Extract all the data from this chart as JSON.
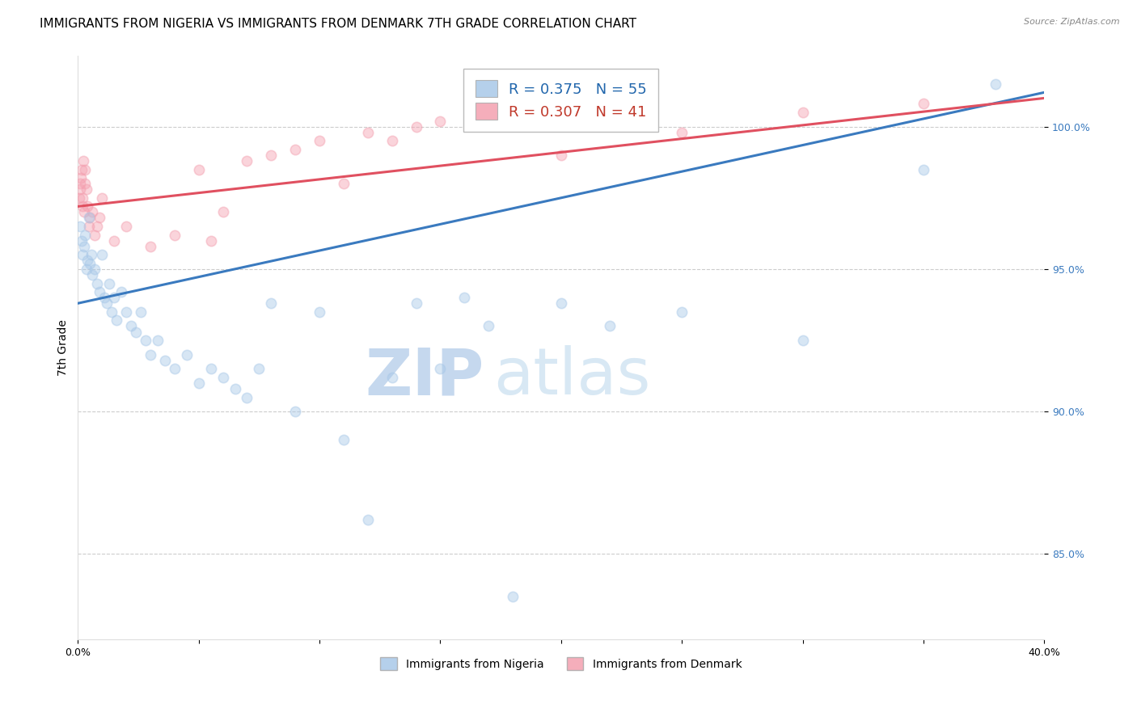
{
  "title": "IMMIGRANTS FROM NIGERIA VS IMMIGRANTS FROM DENMARK 7TH GRADE CORRELATION CHART",
  "source": "Source: ZipAtlas.com",
  "ylabel": "7th Grade",
  "xlim": [
    0.0,
    40.0
  ],
  "ylim": [
    82.0,
    102.5
  ],
  "yticks": [
    85.0,
    90.0,
    95.0,
    100.0
  ],
  "ytick_labels": [
    "85.0%",
    "90.0%",
    "95.0%",
    "100.0%"
  ],
  "xticks": [
    0.0,
    5.0,
    10.0,
    15.0,
    20.0,
    25.0,
    30.0,
    35.0,
    40.0
  ],
  "nigeria_color": "#a8c8e8",
  "denmark_color": "#f4a0b0",
  "nigeria_line_color": "#3a7abf",
  "denmark_line_color": "#e05060",
  "legend_nigeria_label": "Immigrants from Nigeria",
  "legend_denmark_label": "Immigrants from Denmark",
  "nigeria_R": "0.375",
  "nigeria_N": "55",
  "denmark_R": "0.307",
  "denmark_N": "41",
  "nigeria_scatter_x": [
    0.1,
    0.15,
    0.2,
    0.25,
    0.3,
    0.35,
    0.4,
    0.45,
    0.5,
    0.55,
    0.6,
    0.7,
    0.8,
    0.9,
    1.0,
    1.1,
    1.2,
    1.3,
    1.4,
    1.5,
    1.6,
    1.8,
    2.0,
    2.2,
    2.4,
    2.6,
    2.8,
    3.0,
    3.3,
    3.6,
    4.0,
    4.5,
    5.0,
    5.5,
    6.0,
    6.5,
    7.0,
    7.5,
    8.0,
    9.0,
    10.0,
    11.0,
    12.0,
    13.0,
    14.0,
    15.0,
    16.0,
    17.0,
    18.0,
    20.0,
    22.0,
    25.0,
    30.0,
    35.0,
    38.0
  ],
  "nigeria_scatter_y": [
    96.5,
    96.0,
    95.5,
    95.8,
    96.2,
    95.0,
    95.3,
    96.8,
    95.2,
    95.5,
    94.8,
    95.0,
    94.5,
    94.2,
    95.5,
    94.0,
    93.8,
    94.5,
    93.5,
    94.0,
    93.2,
    94.2,
    93.5,
    93.0,
    92.8,
    93.5,
    92.5,
    92.0,
    92.5,
    91.8,
    91.5,
    92.0,
    91.0,
    91.5,
    91.2,
    90.8,
    90.5,
    91.5,
    93.8,
    90.0,
    93.5,
    89.0,
    86.2,
    91.2,
    93.8,
    91.5,
    94.0,
    93.0,
    83.5,
    93.8,
    93.0,
    93.5,
    92.5,
    98.5,
    101.5
  ],
  "denmark_scatter_x": [
    0.05,
    0.08,
    0.1,
    0.12,
    0.15,
    0.18,
    0.2,
    0.22,
    0.25,
    0.28,
    0.3,
    0.35,
    0.4,
    0.45,
    0.5,
    0.6,
    0.7,
    0.8,
    0.9,
    1.0,
    1.5,
    2.0,
    3.0,
    4.0,
    5.0,
    5.5,
    6.0,
    7.0,
    8.0,
    9.0,
    10.0,
    11.0,
    12.0,
    13.0,
    14.0,
    15.0,
    17.0,
    20.0,
    25.0,
    30.0,
    35.0
  ],
  "denmark_scatter_y": [
    97.5,
    97.8,
    98.0,
    98.2,
    98.5,
    97.2,
    97.5,
    98.8,
    97.0,
    98.0,
    98.5,
    97.8,
    97.2,
    96.5,
    96.8,
    97.0,
    96.2,
    96.5,
    96.8,
    97.5,
    96.0,
    96.5,
    95.8,
    96.2,
    98.5,
    96.0,
    97.0,
    98.8,
    99.0,
    99.2,
    99.5,
    98.0,
    99.8,
    99.5,
    100.0,
    100.2,
    100.5,
    99.0,
    99.8,
    100.5,
    100.8
  ],
  "background_color": "#ffffff",
  "grid_color": "#cccccc",
  "watermark_zip": "ZIP",
  "watermark_atlas": "atlas",
  "watermark_color": "#d0e4f5",
  "title_fontsize": 11,
  "axis_label_fontsize": 10,
  "tick_fontsize": 9,
  "marker_size": 80,
  "marker_alpha": 0.45,
  "line_width": 2.2
}
